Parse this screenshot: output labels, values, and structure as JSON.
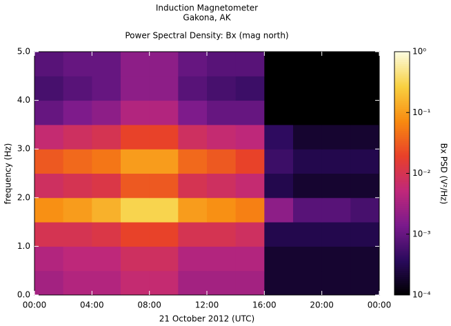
{
  "chart_data": {
    "type": "heatmap",
    "title": "Induction Magnetometer",
    "subtitle": "Gakona, AK",
    "plot_title": "Power Spectral Density: Bx (mag north)",
    "xlabel": "21 October 2012 (UTC)",
    "ylabel": "frequency (Hz)",
    "colorbar_label": "Bx PSD (V²/Hz)",
    "xlim": [
      0,
      24
    ],
    "xticks": [
      {
        "value": 0,
        "label": "00:00"
      },
      {
        "value": 4,
        "label": "04:00"
      },
      {
        "value": 8,
        "label": "08:00"
      },
      {
        "value": 12,
        "label": "12:00"
      },
      {
        "value": 16,
        "label": "16:00"
      },
      {
        "value": 20,
        "label": "20:00"
      },
      {
        "value": 24,
        "label": "00:00"
      }
    ],
    "ylim": [
      0,
      5
    ],
    "yticks": [
      {
        "value": 0,
        "label": "0.0"
      },
      {
        "value": 1,
        "label": "1.0"
      },
      {
        "value": 2,
        "label": "2.0"
      },
      {
        "value": 3,
        "label": "3.0"
      },
      {
        "value": 4,
        "label": "4.0"
      },
      {
        "value": 5,
        "label": "5.0"
      }
    ],
    "clim": [
      0.0001,
      1
    ],
    "clog": true,
    "cticks": [
      {
        "value": 0.0001,
        "label": "10⁻⁴"
      },
      {
        "value": 0.001,
        "label": "10⁻³"
      },
      {
        "value": 0.01,
        "label": "10⁻²"
      },
      {
        "value": 0.1,
        "label": "10⁻¹"
      },
      {
        "value": 1,
        "label": "10⁰"
      }
    ],
    "colorscale": [
      "#000000",
      "#2a0a5c",
      "#7a1a8c",
      "#c0287a",
      "#e8402a",
      "#f88a10",
      "#f8d040",
      "#fcfce0"
    ],
    "z": [
      [
        0.003,
        0.004,
        0.004,
        0.006,
        0.006,
        0.003,
        0.003,
        0.003,
        0.0002,
        0.0002,
        0.0002,
        0.0002
      ],
      [
        0.004,
        0.005,
        0.005,
        0.008,
        0.008,
        0.004,
        0.004,
        0.004,
        0.0002,
        0.0002,
        0.0002,
        0.0002
      ],
      [
        0.01,
        0.01,
        0.012,
        0.02,
        0.02,
        0.01,
        0.01,
        0.008,
        0.0003,
        0.0003,
        0.0003,
        0.0003
      ],
      [
        0.08,
        0.1,
        0.15,
        0.3,
        0.3,
        0.1,
        0.08,
        0.06,
        0.002,
        0.0008,
        0.0008,
        0.0006
      ],
      [
        0.008,
        0.01,
        0.012,
        0.03,
        0.03,
        0.01,
        0.008,
        0.006,
        0.0003,
        0.0002,
        0.0002,
        0.0002
      ],
      [
        0.03,
        0.04,
        0.05,
        0.1,
        0.1,
        0.04,
        0.03,
        0.02,
        0.0005,
        0.0003,
        0.0003,
        0.0003
      ],
      [
        0.006,
        0.008,
        0.01,
        0.02,
        0.02,
        0.008,
        0.006,
        0.005,
        0.0004,
        0.0002,
        0.0002,
        0.0002
      ],
      [
        0.001,
        0.0015,
        0.002,
        0.004,
        0.004,
        0.0015,
        0.001,
        0.001,
        0.0001,
        0.0001,
        0.0001,
        0.0001
      ],
      [
        0.0006,
        0.0008,
        0.001,
        0.002,
        0.002,
        0.0008,
        0.0006,
        0.0005,
        0.0001,
        0.0001,
        0.0001,
        0.0001
      ],
      [
        0.0008,
        0.001,
        0.001,
        0.002,
        0.002,
        0.001,
        0.0008,
        0.0008,
        0.0001,
        0.0001,
        0.0001,
        0.0001
      ]
    ]
  }
}
